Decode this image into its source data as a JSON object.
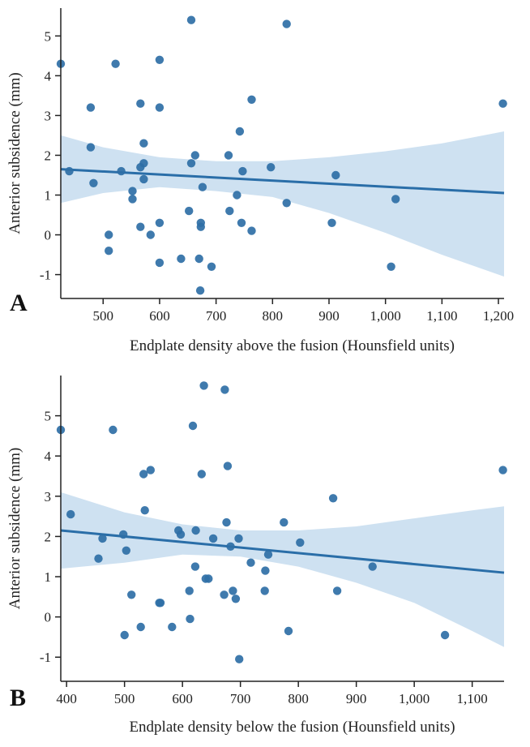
{
  "colors": {
    "point": "#2f6fa6",
    "line": "#2a6ea8",
    "band": "#c6dcee",
    "axis": "#222222"
  },
  "chart_data": [
    {
      "type": "scatter",
      "panel_label": "A",
      "title": "",
      "xlabel": "Endplate density above the fusion (Hounsfield units)",
      "ylabel": "Anterior subsidence (mm)",
      "xlim": [
        425,
        1210
      ],
      "ylim": [
        -1.6,
        5.7
      ],
      "xticks": [
        500,
        600,
        700,
        800,
        900,
        1000,
        1100,
        1200
      ],
      "xtick_labels": [
        "500",
        "600",
        "700",
        "800",
        "900",
        "1,000",
        "1,100",
        "1,200"
      ],
      "yticks": [
        -1,
        0,
        1,
        2,
        3,
        4,
        5
      ],
      "ytick_labels": [
        "-1",
        "0",
        "1",
        "2",
        "3",
        "4",
        "5"
      ],
      "points": [
        {
          "x": 425,
          "y": 4.3
        },
        {
          "x": 440,
          "y": 1.6
        },
        {
          "x": 478,
          "y": 3.2
        },
        {
          "x": 478,
          "y": 2.2
        },
        {
          "x": 483,
          "y": 1.3
        },
        {
          "x": 510,
          "y": 0.0
        },
        {
          "x": 510,
          "y": -0.4
        },
        {
          "x": 522,
          "y": 4.3
        },
        {
          "x": 532,
          "y": 1.6
        },
        {
          "x": 552,
          "y": 1.1
        },
        {
          "x": 552,
          "y": 0.9
        },
        {
          "x": 566,
          "y": 3.3
        },
        {
          "x": 566,
          "y": 1.7
        },
        {
          "x": 566,
          "y": 0.2
        },
        {
          "x": 572,
          "y": 2.3
        },
        {
          "x": 572,
          "y": 1.8
        },
        {
          "x": 572,
          "y": 1.4
        },
        {
          "x": 584,
          "y": 0.0
        },
        {
          "x": 600,
          "y": 4.4
        },
        {
          "x": 600,
          "y": 3.2
        },
        {
          "x": 600,
          "y": 0.3
        },
        {
          "x": 600,
          "y": -0.7
        },
        {
          "x": 638,
          "y": -0.6
        },
        {
          "x": 652,
          "y": 0.6
        },
        {
          "x": 656,
          "y": 5.4
        },
        {
          "x": 656,
          "y": 1.8
        },
        {
          "x": 663,
          "y": 2.0
        },
        {
          "x": 670,
          "y": -0.6
        },
        {
          "x": 672,
          "y": -1.4
        },
        {
          "x": 673,
          "y": 0.3
        },
        {
          "x": 673,
          "y": 0.2
        },
        {
          "x": 676,
          "y": 1.2
        },
        {
          "x": 692,
          "y": -0.8
        },
        {
          "x": 722,
          "y": 2.0
        },
        {
          "x": 724,
          "y": 0.6
        },
        {
          "x": 737,
          "y": 1.0
        },
        {
          "x": 742,
          "y": 2.6
        },
        {
          "x": 745,
          "y": 0.3
        },
        {
          "x": 747,
          "y": 1.6
        },
        {
          "x": 763,
          "y": 3.4
        },
        {
          "x": 763,
          "y": 0.1
        },
        {
          "x": 797,
          "y": 1.7
        },
        {
          "x": 825,
          "y": 5.3
        },
        {
          "x": 825,
          "y": 0.8
        },
        {
          "x": 905,
          "y": 0.3
        },
        {
          "x": 912,
          "y": 1.5
        },
        {
          "x": 1010,
          "y": -0.8
        },
        {
          "x": 1018,
          "y": 0.9
        },
        {
          "x": 1208,
          "y": 3.3
        }
      ],
      "regression": {
        "x": [
          425,
          1210
        ],
        "y": [
          1.65,
          1.05
        ]
      },
      "confidence_band": {
        "x": [
          425,
          500,
          600,
          700,
          800,
          900,
          1000,
          1100,
          1210
        ],
        "upper": [
          2.5,
          2.2,
          1.95,
          1.85,
          1.85,
          1.95,
          2.1,
          2.3,
          2.6
        ],
        "lower": [
          0.8,
          1.05,
          1.2,
          1.1,
          0.95,
          0.55,
          0.05,
          -0.5,
          -1.05
        ]
      }
    },
    {
      "type": "scatter",
      "panel_label": "B",
      "title": "",
      "xlabel": "Endplate density below the fusion (Hounsfield units)",
      "ylabel": "Anterior subsidence (mm)",
      "xlim": [
        390,
        1155
      ],
      "ylim": [
        -1.6,
        6.0
      ],
      "xticks": [
        400,
        500,
        600,
        700,
        800,
        900,
        1000,
        1100
      ],
      "xtick_labels": [
        "400",
        "500",
        "600",
        "700",
        "800",
        "900",
        "1,000",
        "1,100"
      ],
      "yticks": [
        -1,
        0,
        1,
        2,
        3,
        4,
        5
      ],
      "ytick_labels": [
        "-1",
        "0",
        "1",
        "2",
        "3",
        "4",
        "5"
      ],
      "points": [
        {
          "x": 390,
          "y": 4.65
        },
        {
          "x": 407,
          "y": 2.55
        },
        {
          "x": 455,
          "y": 1.45
        },
        {
          "x": 462,
          "y": 1.95
        },
        {
          "x": 480,
          "y": 4.65
        },
        {
          "x": 498,
          "y": 2.05
        },
        {
          "x": 500,
          "y": -0.45
        },
        {
          "x": 503,
          "y": 1.65
        },
        {
          "x": 512,
          "y": 0.55
        },
        {
          "x": 528,
          "y": -0.25
        },
        {
          "x": 533,
          "y": 3.55
        },
        {
          "x": 535,
          "y": 2.65
        },
        {
          "x": 545,
          "y": 3.65
        },
        {
          "x": 560,
          "y": 0.35
        },
        {
          "x": 562,
          "y": 0.35
        },
        {
          "x": 582,
          "y": -0.25
        },
        {
          "x": 593,
          "y": 2.15
        },
        {
          "x": 597,
          "y": 2.05
        },
        {
          "x": 612,
          "y": 0.65
        },
        {
          "x": 613,
          "y": -0.05
        },
        {
          "x": 618,
          "y": 4.75
        },
        {
          "x": 622,
          "y": 1.25
        },
        {
          "x": 623,
          "y": 2.15
        },
        {
          "x": 633,
          "y": 3.55
        },
        {
          "x": 637,
          "y": 5.75
        },
        {
          "x": 640,
          "y": 0.95
        },
        {
          "x": 645,
          "y": 0.95
        },
        {
          "x": 653,
          "y": 1.95
        },
        {
          "x": 672,
          "y": 0.55
        },
        {
          "x": 673,
          "y": 5.65
        },
        {
          "x": 676,
          "y": 2.35
        },
        {
          "x": 678,
          "y": 3.75
        },
        {
          "x": 683,
          "y": 1.75
        },
        {
          "x": 687,
          "y": 0.65
        },
        {
          "x": 692,
          "y": 0.45
        },
        {
          "x": 697,
          "y": 1.95
        },
        {
          "x": 698,
          "y": -1.05
        },
        {
          "x": 718,
          "y": 1.35
        },
        {
          "x": 742,
          "y": 0.65
        },
        {
          "x": 743,
          "y": 1.15
        },
        {
          "x": 748,
          "y": 1.55
        },
        {
          "x": 775,
          "y": 2.35
        },
        {
          "x": 783,
          "y": -0.35
        },
        {
          "x": 803,
          "y": 1.85
        },
        {
          "x": 860,
          "y": 2.95
        },
        {
          "x": 867,
          "y": 0.65
        },
        {
          "x": 928,
          "y": 1.25
        },
        {
          "x": 1053,
          "y": -0.45
        },
        {
          "x": 1153,
          "y": 3.65
        }
      ],
      "regression": {
        "x": [
          390,
          1155
        ],
        "y": [
          2.15,
          1.1
        ]
      },
      "confidence_band": {
        "x": [
          390,
          500,
          600,
          700,
          800,
          900,
          1000,
          1100,
          1155
        ],
        "upper": [
          3.1,
          2.6,
          2.3,
          2.15,
          2.15,
          2.25,
          2.45,
          2.65,
          2.75
        ],
        "lower": [
          1.2,
          1.35,
          1.55,
          1.5,
          1.25,
          0.85,
          0.35,
          -0.35,
          -0.75
        ]
      }
    }
  ]
}
